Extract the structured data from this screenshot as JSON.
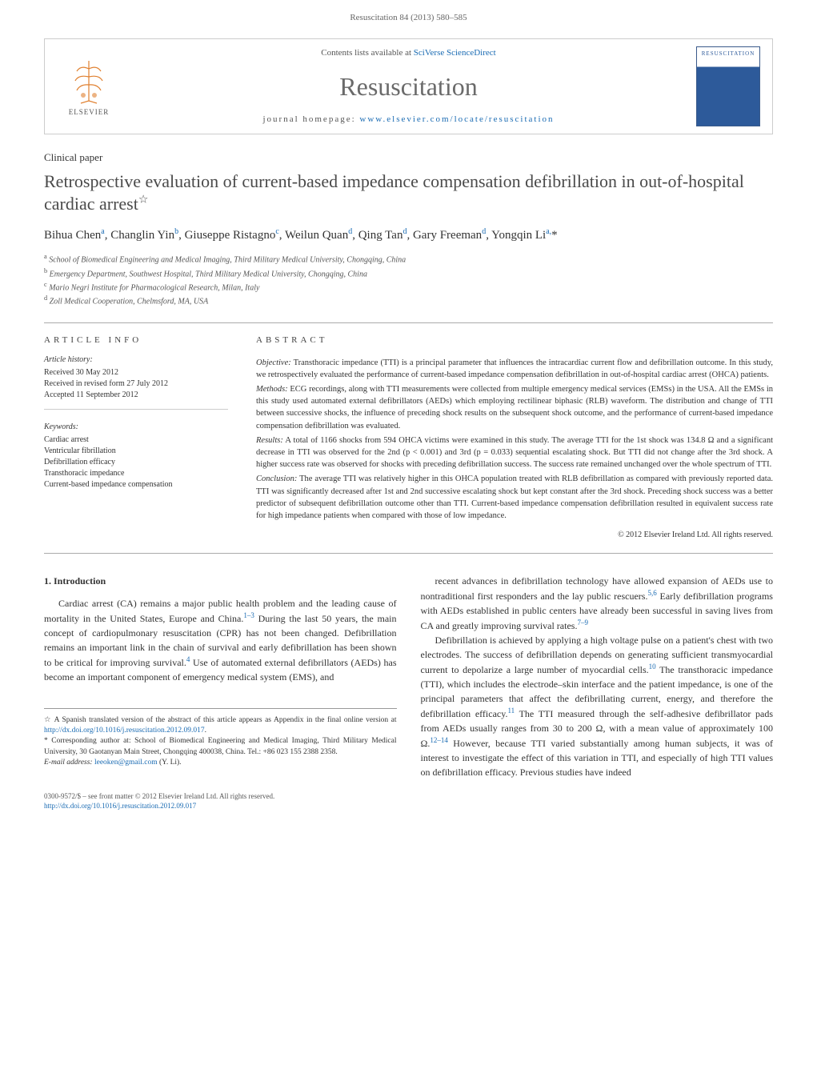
{
  "running_head": "Resuscitation 84 (2013) 580–585",
  "header": {
    "contents_prefix": "Contents lists available at ",
    "contents_link": "SciVerse ScienceDirect",
    "journal_name": "Resuscitation",
    "homepage_prefix": "journal homepage: ",
    "homepage_link": "www.elsevier.com/locate/resuscitation",
    "elsevier_label": "ELSEVIER",
    "cover_label": "RESUSCITATION"
  },
  "article": {
    "type": "Clinical paper",
    "title": "Retrospective evaluation of current-based impedance compensation defibrillation in out-of-hospital cardiac arrest",
    "title_star": "☆",
    "authors_html": "Bihua Chen<sup>a</sup>, Changlin Yin<sup>b</sup>, Giuseppe Ristagno<sup>c</sup>, Weilun Quan<sup>d</sup>, Qing Tan<sup>d</sup>, Gary Freeman<sup>d</sup>, Yongqin Li<sup>a,</sup>*",
    "affiliations": [
      {
        "sup": "a",
        "text": "School of Biomedical Engineering and Medical Imaging, Third Military Medical University, Chongqing, China"
      },
      {
        "sup": "b",
        "text": "Emergency Department, Southwest Hospital, Third Military Medical University, Chongqing, China"
      },
      {
        "sup": "c",
        "text": "Mario Negri Institute for Pharmacological Research, Milan, Italy"
      },
      {
        "sup": "d",
        "text": "Zoll Medical Cooperation, Chelmsford, MA, USA"
      }
    ]
  },
  "info": {
    "heading": "article info",
    "history_label": "Article history:",
    "history": [
      "Received 30 May 2012",
      "Received in revised form 27 July 2012",
      "Accepted 11 September 2012"
    ],
    "keywords_label": "Keywords:",
    "keywords": [
      "Cardiac arrest",
      "Ventricular fibrillation",
      "Defibrillation efficacy",
      "Transthoracic impedance",
      "Current-based impedance compensation"
    ]
  },
  "abstract": {
    "heading": "abstract",
    "paragraphs": [
      {
        "label": "Objective:",
        "text": "Transthoracic impedance (TTI) is a principal parameter that influences the intracardiac current flow and defibrillation outcome. In this study, we retrospectively evaluated the performance of current-based impedance compensation defibrillation in out-of-hospital cardiac arrest (OHCA) patients."
      },
      {
        "label": "Methods:",
        "text": "ECG recordings, along with TTI measurements were collected from multiple emergency medical services (EMSs) in the USA. All the EMSs in this study used automated external defibrillators (AEDs) which employing rectilinear biphasic (RLB) waveform. The distribution and change of TTI between successive shocks, the influence of preceding shock results on the subsequent shock outcome, and the performance of current-based impedance compensation defibrillation was evaluated."
      },
      {
        "label": "Results:",
        "text": "A total of 1166 shocks from 594 OHCA victims were examined in this study. The average TTI for the 1st shock was 134.8 Ω and a significant decrease in TTI was observed for the 2nd (p < 0.001) and 3rd (p = 0.033) sequential escalating shock. But TTI did not change after the 3rd shock. A higher success rate was observed for shocks with preceding defibrillation success. The success rate remained unchanged over the whole spectrum of TTI."
      },
      {
        "label": "Conclusion:",
        "text": "The average TTI was relatively higher in this OHCA population treated with RLB defibrillation as compared with previously reported data. TTI was significantly decreased after 1st and 2nd successive escalating shock but kept constant after the 3rd shock. Preceding shock success was a better predictor of subsequent defibrillation outcome other than TTI. Current-based impedance compensation defibrillation resulted in equivalent success rate for high impedance patients when compared with those of low impedance."
      }
    ],
    "copyright": "© 2012 Elsevier Ireland Ltd. All rights reserved."
  },
  "body": {
    "section_number": "1.",
    "section_title": "Introduction",
    "col1_p1": "Cardiac arrest (CA) remains a major public health problem and the leading cause of mortality in the United States, Europe and China.<sup>1–3</sup> During the last 50 years, the main concept of cardiopulmonary resuscitation (CPR) has not been changed. Defibrillation remains an important link in the chain of survival and early defibrillation has been shown to be critical for improving survival.<sup>4</sup> Use of automated external defibrillators (AEDs) has become an important component of emergency medical system (EMS), and",
    "col2_p1": "recent advances in defibrillation technology have allowed expansion of AEDs use to nontraditional first responders and the lay public rescuers.<sup>5,6</sup> Early defibrillation programs with AEDs established in public centers have already been successful in saving lives from CA and greatly improving survival rates.<sup>7–9</sup>",
    "col2_p2": "Defibrillation is achieved by applying a high voltage pulse on a patient's chest with two electrodes. The success of defibrillation depends on generating sufficient transmyocardial current to depolarize a large number of myocardial cells.<sup>10</sup> The transthoracic impedance (TTI), which includes the electrode–skin interface and the patient impedance, is one of the principal parameters that affect the defibrillating current, energy, and therefore the defibrillation efficacy.<sup>11</sup> The TTI measured through the self-adhesive defibrillator pads from AEDs usually ranges from 30 to 200 Ω, with a mean value of approximately 100 Ω.<sup>12–14</sup> However, because TTI varied substantially among human subjects, it was of interest to investigate the effect of this variation in TTI, and especially of high TTI values on defibrillation efficacy. Previous studies have indeed"
  },
  "footnotes": {
    "star_note_prefix": "☆ A Spanish translated version of the abstract of this article appears as Appendix in the final online version at ",
    "star_note_link": "http://dx.doi.org/10.1016/j.resuscitation.2012.09.017",
    "corr_note": "* Corresponding author at: School of Biomedical Engineering and Medical Imaging, Third Military Medical University, 30 Gaotanyan Main Street, Chongqing 400038, China. Tel.: +86 023 155 2388 2358.",
    "email_label": "E-mail address: ",
    "email": "leeoken@gmail.com",
    "email_suffix": " (Y. Li)."
  },
  "bottom": {
    "issn_line": "0300-9572/$ – see front matter © 2012 Elsevier Ireland Ltd. All rights reserved.",
    "doi_link": "http://dx.doi.org/10.1016/j.resuscitation.2012.09.017"
  },
  "colors": {
    "link": "#1a6bb3",
    "text": "#333333",
    "muted": "#555555",
    "rule": "#aaaaaa",
    "journal_blue": "#2d5a9a"
  }
}
